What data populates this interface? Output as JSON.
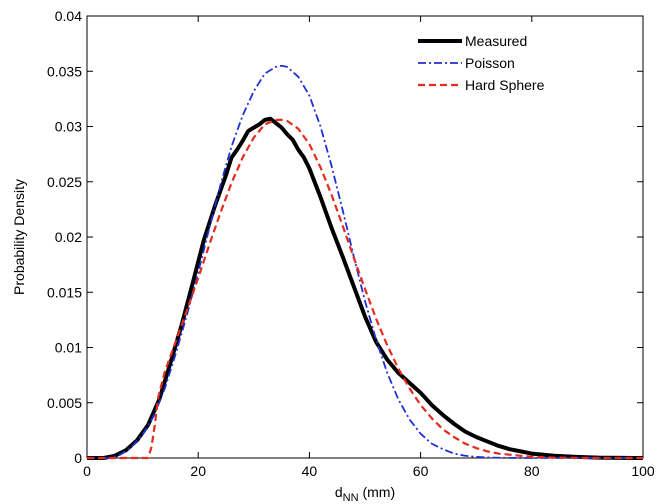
{
  "chart_data": {
    "type": "line",
    "title": "",
    "xlabel": "d",
    "xlabel_subscript": "NN",
    "xlabel_suffix": " (mm)",
    "ylabel": "Probability Density",
    "xlim": [
      0,
      100
    ],
    "ylim": [
      0,
      0.04
    ],
    "xticks": [
      0,
      20,
      40,
      60,
      80,
      100
    ],
    "xtick_labels": [
      "0",
      "20",
      "40",
      "60",
      "80",
      "100"
    ],
    "yticks": [
      0,
      0.005,
      0.01,
      0.015,
      0.02,
      0.025,
      0.03,
      0.035,
      0.04
    ],
    "ytick_labels": [
      "0",
      "0.005",
      "0.01",
      "0.015",
      "0.02",
      "0.025",
      "0.03",
      "0.035",
      "0.04"
    ],
    "grid": false,
    "legend_position": "top-right",
    "series": [
      {
        "name": "Measured",
        "color": "#000000",
        "style": "solid-thick",
        "x": [
          0,
          3,
          5,
          7,
          9,
          11,
          13,
          15,
          17,
          19,
          21,
          23,
          25,
          26,
          27,
          28,
          29,
          30,
          31,
          32,
          33,
          34,
          35,
          36,
          37,
          38,
          39,
          40,
          42,
          44,
          46,
          48,
          50,
          52,
          54,
          56,
          58,
          60,
          62,
          64,
          66,
          68,
          70,
          72,
          74,
          76,
          78,
          80,
          84,
          88,
          92,
          100
        ],
        "y": [
          0,
          0,
          0.0002,
          0.0007,
          0.0016,
          0.003,
          0.0053,
          0.0086,
          0.012,
          0.0158,
          0.0197,
          0.0228,
          0.0256,
          0.0272,
          0.0279,
          0.0287,
          0.0296,
          0.0299,
          0.0302,
          0.0306,
          0.0307,
          0.0303,
          0.0299,
          0.0293,
          0.0288,
          0.0279,
          0.0272,
          0.0262,
          0.0236,
          0.0208,
          0.0182,
          0.0155,
          0.0128,
          0.0105,
          0.0089,
          0.0077,
          0.0068,
          0.0059,
          0.0048,
          0.0039,
          0.0031,
          0.0024,
          0.0019,
          0.0015,
          0.0011,
          0.0008,
          0.0006,
          0.0004,
          0.0002,
          0.0001,
          3e-05,
          0
        ]
      },
      {
        "name": "Poisson",
        "color": "#1f2fd6",
        "style": "dash-dot",
        "x": [
          0,
          4,
          6,
          8,
          10,
          12,
          14,
          16,
          18,
          20,
          22,
          24,
          26,
          28,
          30,
          32,
          34,
          35,
          36,
          38,
          40,
          42,
          44,
          46,
          48,
          50,
          52,
          54,
          56,
          58,
          60,
          62,
          64,
          66,
          68,
          70,
          72,
          74,
          76,
          78,
          80,
          84,
          90,
          100
        ],
        "y": [
          0,
          0,
          0.0003,
          0.001,
          0.0021,
          0.0038,
          0.0063,
          0.0095,
          0.013,
          0.0168,
          0.0208,
          0.0247,
          0.0282,
          0.031,
          0.0332,
          0.0348,
          0.0354,
          0.0355,
          0.0354,
          0.0345,
          0.0328,
          0.03,
          0.0264,
          0.0224,
          0.0182,
          0.0142,
          0.0107,
          0.0077,
          0.0053,
          0.0035,
          0.0022,
          0.0013,
          0.0008,
          0.0004,
          0.0002,
          0.0001,
          5e-05,
          2e-05,
          1e-05,
          0,
          0,
          0,
          0,
          0
        ]
      },
      {
        "name": "Hard Sphere",
        "color": "#e32b1e",
        "style": "dashed",
        "x": [
          0,
          11,
          11.6,
          12.2,
          12.8,
          14,
          16,
          18,
          20,
          22,
          24,
          26,
          28,
          30,
          32,
          34,
          35,
          36,
          38,
          40,
          42,
          44,
          46,
          48,
          50,
          52,
          54,
          56,
          58,
          60,
          62,
          64,
          66,
          68,
          70,
          72,
          74,
          76,
          78,
          80,
          84,
          90,
          100
        ],
        "y": [
          0,
          0,
          0.001,
          0.003,
          0.0055,
          0.0078,
          0.0106,
          0.0134,
          0.0163,
          0.0193,
          0.0222,
          0.0249,
          0.0272,
          0.029,
          0.0302,
          0.0306,
          0.0306,
          0.0305,
          0.0298,
          0.0284,
          0.0263,
          0.0238,
          0.021,
          0.0181,
          0.0153,
          0.0126,
          0.0102,
          0.0081,
          0.0063,
          0.0048,
          0.0036,
          0.0026,
          0.0019,
          0.0013,
          0.0009,
          0.0006,
          0.0004,
          0.0003,
          0.0002,
          0.0001,
          4e-05,
          1e-05,
          0
        ]
      }
    ]
  }
}
